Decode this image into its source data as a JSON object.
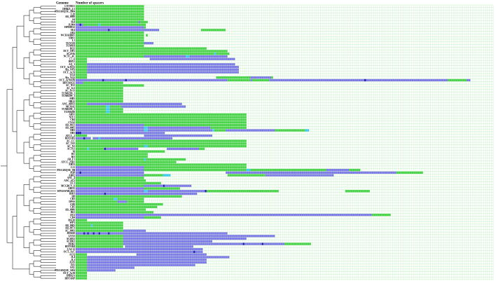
{
  "headers": {
    "genome": "Genome",
    "spacers": "Number of spacers"
  },
  "colors": {
    "background": "#ffffff",
    "grid": "#33cc33",
    "green": "#46d246",
    "blue": "#7b78e6",
    "cyan": "#38c8f0",
    "navy": "#1f1fb0",
    "white": "#ffffff"
  },
  "legend_codes": {
    "G": "green spacer block",
    "B": "blue spacer block",
    "C": "cyan spacer",
    "N": "dark blue spacer",
    "W": "blank / missing spacer"
  },
  "grid": {
    "columns": 220
  },
  "genomes": [
    {
      "name": "LNY0021",
      "cells": "G36"
    },
    {
      "name": "DHB25_2/1",
      "cells": "G36"
    },
    {
      "name": "PDAARQSE_3884",
      "cells": "G36"
    },
    {
      "name": "L20",
      "cells": "G36"
    },
    {
      "name": "AR_0088",
      "cells": "G36"
    },
    {
      "name": "64",
      "cells": "G36"
    },
    {
      "name": "Sk4",
      "cells": "G33B1G4"
    },
    {
      "name": "JL004",
      "cells": "B2N1B1G8C1G21G3"
    },
    {
      "name": "HPH8812",
      "cells": "B36G1"
    },
    {
      "name": "SE4",
      "cells": "B17N1B26W22G13"
    },
    {
      "name": "AR3",
      "cells": "G36"
    },
    {
      "name": "WCHAHB05",
      "cells": "G36W1G1"
    },
    {
      "name": "SM01",
      "cells": "G36"
    },
    {
      "name": "L1",
      "cells": "G36"
    },
    {
      "name": "TGY359",
      "cells": "G36B5"
    },
    {
      "name": "TUM9H",
      "cells": "G36"
    },
    {
      "name": "BQ3",
      "cells": "G36G25G8"
    },
    {
      "name": "DCT_1001",
      "cells": "G36G44"
    },
    {
      "name": "SC2016",
      "cells": "G36G37C1G1G6"
    },
    {
      "name": "NCTC_4C",
      "cells": "G36B22C2B14B6"
    },
    {
      "name": "C7_6",
      "cells": "G6W33B45"
    },
    {
      "name": "DBX1",
      "cells": "G6"
    },
    {
      "name": "AQ_3",
      "cells": "G6B78"
    },
    {
      "name": "OCT_AcNQ3",
      "cells": "G6B80"
    },
    {
      "name": "Ala_N3Q",
      "cells": "G6B80"
    },
    {
      "name": "OCT_AcSt",
      "cells": "G6B80"
    },
    {
      "name": "GG4",
      "cells": "G6"
    },
    {
      "name": "Ala_YQ3",
      "cells": "G6W68G18B11G1"
    },
    {
      "name": "OCT_AcWkM",
      "cells": "B14N1B11N1B53G12B1G9B50N1B43G10B2"
    },
    {
      "name": "BDTARGE",
      "cells": "B4G21"
    },
    {
      "name": "AC_N52",
      "cells": "G36"
    },
    {
      "name": "AC_6c3",
      "cells": "G25"
    },
    {
      "name": "AC_6v13",
      "cells": "G25"
    },
    {
      "name": "TUM0299_1",
      "cells": "G25"
    },
    {
      "name": "TUM0299_3",
      "cells": "G25"
    },
    {
      "name": "MB3",
      "cells": "G25"
    },
    {
      "name": "HB12",
      "cells": "G25"
    },
    {
      "name": "ANC_46833",
      "cells": "G6B50"
    },
    {
      "name": "MC8142",
      "cells": "G16C2G6B34"
    },
    {
      "name": "TUM0298_2",
      "cells": "G16C2G7"
    },
    {
      "name": "TUM0298",
      "cells": "G16C2G7"
    },
    {
      "name": "AR91",
      "cells": "G36G54"
    },
    {
      "name": "NIV1",
      "cells": "G36G54"
    },
    {
      "name": "CB4",
      "cells": "G36G54"
    },
    {
      "name": "CNA2",
      "cells": "G36G54"
    },
    {
      "name": "AR_0021",
      "cells": "B36G54"
    },
    {
      "name": "AR_0005",
      "cells": "B36C2B33G19"
    },
    {
      "name": "DB3",
      "cells": "B36C2B34C1G6B26G16C2"
    },
    {
      "name": "DB3",
      "cells": "N3B33B11W3"
    },
    {
      "name": "ATCC_2",
      "cells": "G6W30B36"
    },
    {
      "name": "BDTAR3",
      "cells": "B4N1B3W1B3C1B2B36"
    },
    {
      "name": "AC_CC",
      "cells": "G36G54"
    },
    {
      "name": "AC_C65",
      "cells": "G36G54"
    },
    {
      "name": "AC_N3",
      "cells": "G36C2G32G20"
    },
    {
      "name": "AC3X1",
      "cells": "G6C1G8N1B15B2W15B17G3"
    },
    {
      "name": "M",
      "cells": "G36G11"
    },
    {
      "name": "BU",
      "cells": "G36G2"
    },
    {
      "name": "BO",
      "cells": "G36G2"
    },
    {
      "name": "AR_F1",
      "cells": "G36C1G21"
    },
    {
      "name": "ATCC_2SB1",
      "cells": "G36G17"
    },
    {
      "name": "AH53",
      "cells": "G36G54"
    },
    {
      "name": "C21",
      "cells": "B36G54"
    },
    {
      "name": "PDAARQSE_9B",
      "cells": "B36G54C2G20G20B12G6"
    },
    {
      "name": "AQ8",
      "cells": "B2N1B33W43B90G14"
    },
    {
      "name": "AH62",
      "cells": "B36G10C4W30G20B36"
    },
    {
      "name": "ANC_4",
      "cells": "G36W1"
    },
    {
      "name": "ANC_4C5",
      "cells": "G36G1"
    },
    {
      "name": "AC3",
      "cells": "G36G9"
    },
    {
      "name": "MCGBCV_6",
      "cells": "G36B10N1B14"
    },
    {
      "name": "AHO5",
      "cells": "B36G19"
    },
    {
      "name": "WPASWMLD01",
      "cells": "B36C2B30N1G38W35G13"
    },
    {
      "name": "BHO",
      "cells": "B15N1B20B28"
    },
    {
      "name": "H8",
      "cells": "G36G20"
    },
    {
      "name": "CB3",
      "cells": "G20C2G14"
    },
    {
      "name": "DP6S",
      "cells": "G22B5G9"
    },
    {
      "name": "CH9",
      "cells": "G36G10"
    },
    {
      "name": "CB5",
      "cells": "G36G7"
    },
    {
      "name": "AR_0086",
      "cells": "G36G1"
    },
    {
      "name": "B61",
      "cells": "G36G5"
    },
    {
      "name": "DT2",
      "cells": "B36B36B70B14G10"
    },
    {
      "name": "CB4",
      "cells": "B36G9"
    },
    {
      "name": "MG30",
      "cells": "G6"
    },
    {
      "name": "WP3",
      "cells": "G25"
    },
    {
      "name": "AR_0083",
      "cells": "G8C1G16"
    },
    {
      "name": "AR_0073",
      "cells": "G25"
    },
    {
      "name": "AC_0093",
      "cells": "G25B12"
    },
    {
      "name": "JH3020",
      "cells": "B4N1B1N1B2N1B2N1B4N1B8B19B35"
    },
    {
      "name": "LNA3",
      "cells": "G25B80"
    },
    {
      "name": "AC6953",
      "cells": "G25B65W25"
    },
    {
      "name": "AC6963",
      "cells": "G25B47"
    },
    {
      "name": "DHB2",
      "cells": "G25B63N1B9N1B11G14"
    },
    {
      "name": "BDTAR4",
      "cells": "G25W1B36"
    },
    {
      "name": "CAC12",
      "cells": "B4B63"
    },
    {
      "name": "OCT_AcC",
      "cells": "B62N1B4"
    },
    {
      "name": "ACQ",
      "cells": "G6W26B37"
    },
    {
      "name": "JL4",
      "cells": "G6B63B12"
    },
    {
      "name": "JL3",
      "cells": "G6B63"
    },
    {
      "name": "JL0S",
      "cells": "G6B63"
    },
    {
      "name": "JH1",
      "cells": "G6B57"
    },
    {
      "name": "SAL",
      "cells": "G6B25"
    },
    {
      "name": "PDAARQSE_3484",
      "cells": "G6B15"
    },
    {
      "name": "OCT_AcM",
      "cells": "G6"
    },
    {
      "name": "DHB2A",
      "cells": "G6"
    },
    {
      "name": "BDTARP",
      "cells": "G6"
    }
  ]
}
